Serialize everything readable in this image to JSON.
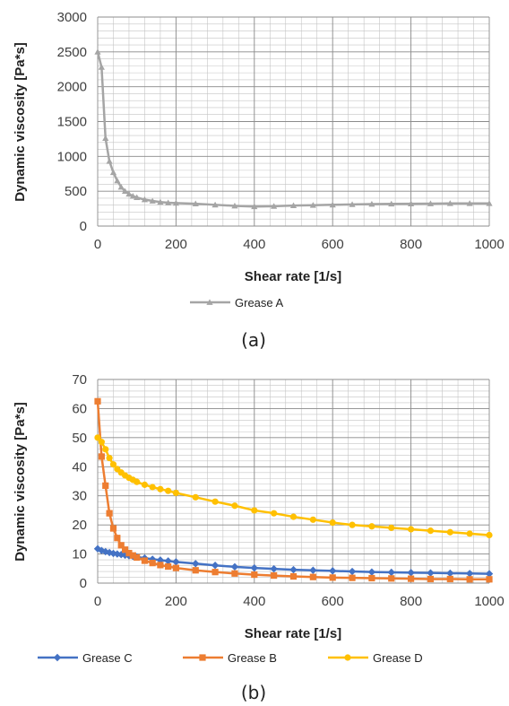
{
  "chart_data": [
    {
      "type": "line",
      "caption": "(a)",
      "xlabel": "Shear rate [1/s]",
      "ylabel": "Dynamic viscosity [Pa*s]",
      "xlim": [
        0,
        1000
      ],
      "ylim": [
        0,
        3000
      ],
      "xticks": [
        0,
        200,
        400,
        600,
        800,
        1000
      ],
      "yticks": [
        0,
        500,
        1000,
        1500,
        2000,
        2500,
        3000
      ],
      "grid": true,
      "legend": "bottom-center",
      "series": [
        {
          "name": "Grease A",
          "color": "#a5a5a5",
          "marker": "triangle",
          "x": [
            0,
            10,
            20,
            30,
            40,
            50,
            60,
            70,
            80,
            90,
            100,
            120,
            140,
            160,
            180,
            200,
            250,
            300,
            350,
            400,
            450,
            500,
            550,
            600,
            650,
            700,
            750,
            800,
            850,
            900,
            950,
            1000
          ],
          "y": [
            2500,
            2280,
            1260,
            930,
            770,
            650,
            560,
            500,
            460,
            430,
            410,
            380,
            360,
            345,
            335,
            330,
            320,
            305,
            290,
            280,
            285,
            295,
            300,
            305,
            310,
            315,
            318,
            320,
            322,
            325,
            325,
            325
          ]
        }
      ]
    },
    {
      "type": "line",
      "caption": "(b)",
      "xlabel": "Shear rate [1/s]",
      "ylabel": "Dynamic viscosity [Pa*s]",
      "xlim": [
        0,
        1000
      ],
      "ylim": [
        0,
        70
      ],
      "xticks": [
        0,
        200,
        400,
        600,
        800,
        1000
      ],
      "yticks": [
        0,
        10,
        20,
        30,
        40,
        50,
        60,
        70
      ],
      "grid": true,
      "legend": "bottom-center",
      "series": [
        {
          "name": "Grease C",
          "color": "#4472c4",
          "marker": "diamond",
          "x": [
            0,
            10,
            20,
            30,
            40,
            50,
            60,
            70,
            80,
            90,
            100,
            120,
            140,
            160,
            180,
            200,
            250,
            300,
            350,
            400,
            450,
            500,
            550,
            600,
            650,
            700,
            750,
            800,
            850,
            900,
            950,
            1000
          ],
          "y": [
            11.8,
            11.2,
            10.8,
            10.5,
            10.2,
            10.0,
            9.8,
            9.6,
            9.4,
            9.2,
            9.0,
            8.6,
            8.2,
            7.9,
            7.6,
            7.3,
            6.7,
            6.1,
            5.6,
            5.2,
            4.9,
            4.6,
            4.4,
            4.2,
            4.0,
            3.8,
            3.7,
            3.6,
            3.5,
            3.4,
            3.3,
            3.2
          ]
        },
        {
          "name": "Grease B",
          "color": "#ed7d31",
          "marker": "square",
          "x": [
            0,
            10,
            20,
            30,
            40,
            50,
            60,
            70,
            80,
            90,
            100,
            120,
            140,
            160,
            180,
            200,
            250,
            300,
            350,
            400,
            450,
            500,
            550,
            600,
            650,
            700,
            750,
            800,
            850,
            900,
            950,
            1000
          ],
          "y": [
            62.5,
            43.5,
            33.5,
            24.0,
            18.8,
            15.5,
            13.0,
            11.5,
            10.3,
            9.5,
            8.8,
            7.7,
            6.9,
            6.2,
            5.7,
            5.2,
            4.4,
            3.8,
            3.3,
            2.9,
            2.6,
            2.3,
            2.1,
            1.9,
            1.8,
            1.7,
            1.6,
            1.5,
            1.4,
            1.4,
            1.3,
            1.3
          ]
        },
        {
          "name": "Grease D",
          "color": "#ffc000",
          "marker": "circle",
          "x": [
            0,
            10,
            20,
            30,
            40,
            50,
            60,
            70,
            80,
            90,
            100,
            120,
            140,
            160,
            180,
            200,
            250,
            300,
            350,
            400,
            450,
            500,
            550,
            600,
            650,
            700,
            750,
            800,
            850,
            900,
            950,
            1000
          ],
          "y": [
            50.0,
            48.5,
            46.0,
            43.0,
            40.8,
            39.2,
            38.0,
            37.0,
            36.2,
            35.5,
            34.8,
            33.8,
            33.0,
            32.3,
            31.7,
            31.0,
            29.5,
            28.0,
            26.6,
            25.0,
            24.0,
            22.8,
            21.8,
            20.8,
            20.0,
            19.5,
            19.0,
            18.5,
            18.0,
            17.5,
            17.0,
            16.5
          ]
        }
      ]
    }
  ]
}
